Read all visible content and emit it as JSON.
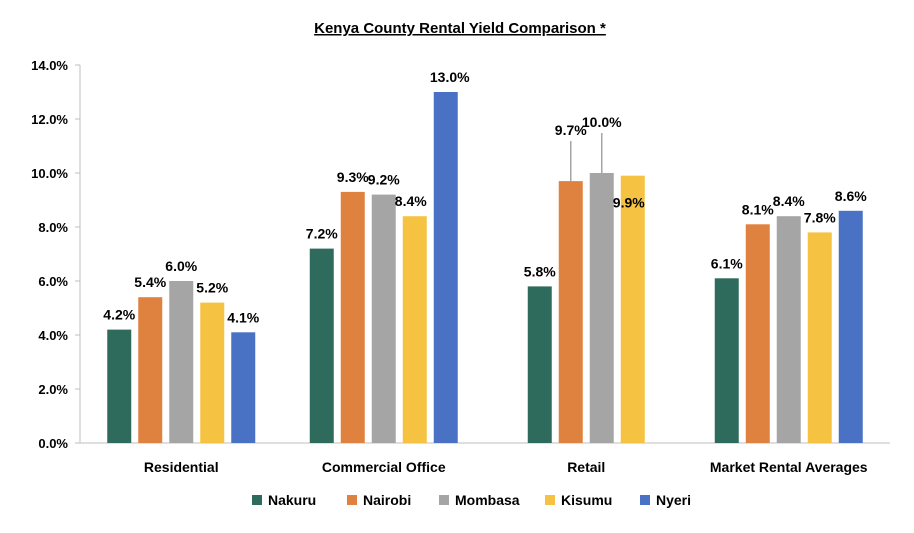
{
  "chart_data": {
    "type": "bar",
    "title": "Kenya County Rental Yield Comparison *",
    "categories": [
      "Residential",
      "Commercial Office",
      "Retail",
      "Market Rental Averages"
    ],
    "series": [
      {
        "name": "Nakuru",
        "color": "#2e6b5d",
        "values": [
          4.2,
          7.2,
          5.8,
          6.1
        ],
        "labels": [
          "4.2%",
          "7.2%",
          "5.8%",
          "6.1%"
        ]
      },
      {
        "name": "Nairobi",
        "color": "#e0823f",
        "values": [
          5.4,
          9.3,
          9.7,
          8.1
        ],
        "labels": [
          "5.4%",
          "9.3%",
          "9.7%",
          "8.1%"
        ]
      },
      {
        "name": "Mombasa",
        "color": "#a5a5a5",
        "values": [
          6.0,
          9.2,
          10.0,
          8.4
        ],
        "labels": [
          "6.0%",
          "9.2%",
          "10.0%",
          "8.4%"
        ]
      },
      {
        "name": "Kisumu",
        "color": "#f5c242",
        "values": [
          5.2,
          8.4,
          9.9,
          7.8
        ],
        "labels": [
          "5.2%",
          "8.4%",
          "9.9%",
          "7.8%"
        ]
      },
      {
        "name": "Nyeri",
        "color": "#4a72c4",
        "values": [
          4.1,
          13.0,
          null,
          8.6
        ],
        "labels": [
          "4.1%",
          "13.0%",
          "",
          "8.6%"
        ]
      }
    ],
    "y_ticks": [
      "0.0%",
      "2.0%",
      "4.0%",
      "6.0%",
      "8.0%",
      "10.0%",
      "12.0%",
      "14.0%"
    ],
    "ylim": [
      0,
      14
    ],
    "grid": false,
    "legend_position": "bottom"
  }
}
